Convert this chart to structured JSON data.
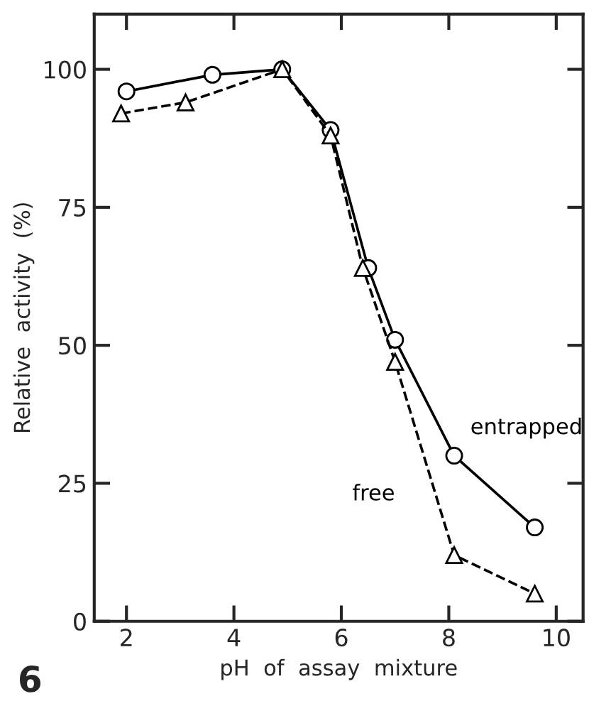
{
  "chart_data": {
    "type": "line",
    "xlabel": "pH  of  assay  mixture",
    "ylabel": "Relative  activity  (%)",
    "annotations": [
      "6"
    ],
    "xlim": [
      1.4,
      10.5
    ],
    "ylim": [
      0,
      110
    ],
    "xticks": [
      2,
      4,
      6,
      8,
      10
    ],
    "yticks": [
      0,
      25,
      50,
      75,
      100
    ],
    "grid": false,
    "legend": false,
    "series": [
      {
        "name": "entrapped",
        "color": "#000000",
        "marker": "circle",
        "line_style": "solid",
        "x": [
          2,
          3.6,
          4.9,
          5.8,
          6.5,
          7,
          8.1,
          9.6
        ],
        "values": [
          96,
          99,
          100,
          89,
          64,
          51,
          30,
          17
        ]
      },
      {
        "name": "free",
        "color": "#000000",
        "marker": "triangle",
        "line_style": "dashed",
        "x": [
          1.9,
          3.1,
          4.9,
          5.8,
          6.4,
          7,
          8.1,
          9.6
        ],
        "values": [
          92,
          94,
          100,
          88,
          64,
          47,
          12,
          5
        ]
      }
    ]
  }
}
